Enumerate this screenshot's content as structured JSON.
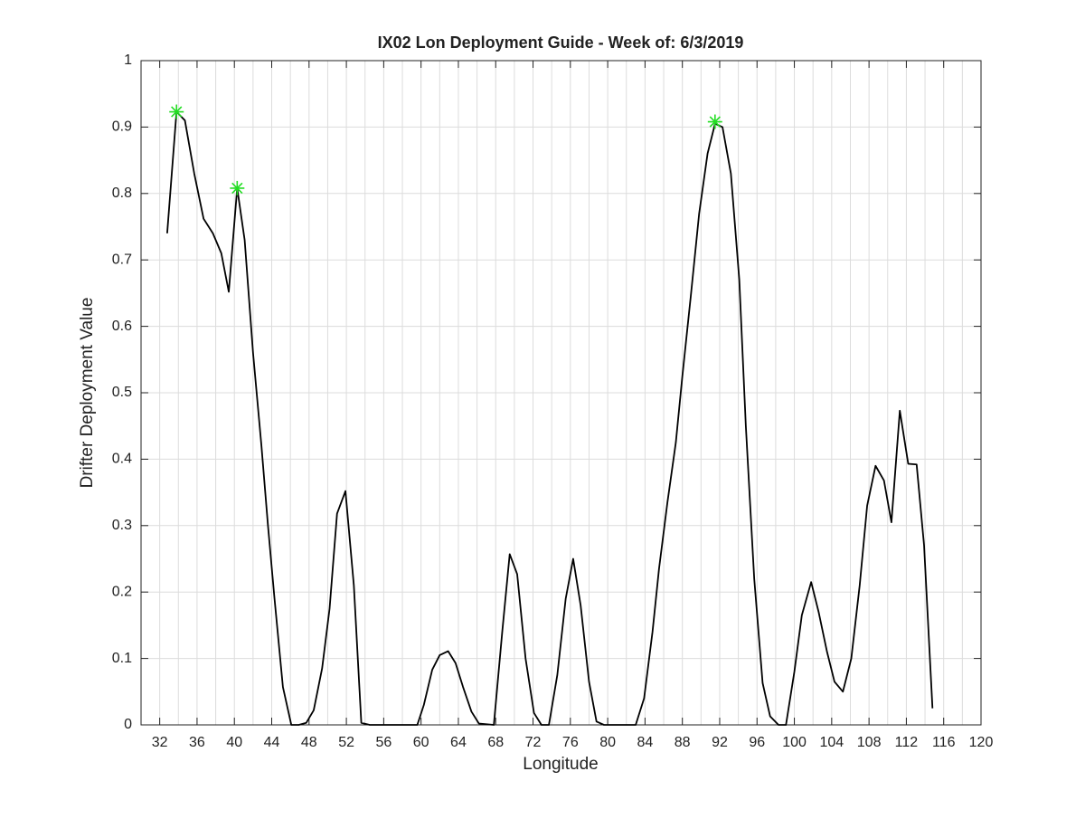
{
  "chart_data": {
    "type": "line",
    "title": "IX02 Lon Deployment Guide - Week of: 6/3/2019",
    "xlabel": "Longitude",
    "ylabel": "Drifter Deployment Value",
    "xlim": [
      30,
      120
    ],
    "ylim": [
      0,
      1
    ],
    "xticks": [
      32,
      36,
      40,
      44,
      48,
      52,
      56,
      60,
      64,
      68,
      72,
      76,
      80,
      84,
      88,
      92,
      96,
      100,
      104,
      108,
      112,
      116,
      120
    ],
    "x_grid_lines": [
      32,
      34,
      36,
      38,
      40,
      42,
      44,
      46,
      48,
      50,
      52,
      54,
      56,
      58,
      60,
      62,
      64,
      66,
      68,
      70,
      72,
      74,
      76,
      78,
      80,
      82,
      84,
      86,
      88,
      90,
      92,
      94,
      96,
      98,
      100,
      102,
      104,
      106,
      108,
      110,
      112,
      114,
      116,
      118,
      120
    ],
    "yticks": [
      0,
      0.1,
      0.2,
      0.3,
      0.4,
      0.5,
      0.6,
      0.7,
      0.8,
      0.9,
      1
    ],
    "grid": true,
    "series": [
      {
        "color": "#000000",
        "marker": "none",
        "x": [
          32.8,
          33.8,
          34.7,
          35.7,
          36.7,
          37.7,
          38.6,
          39.4,
          40.3,
          41.1,
          42.0,
          42.9,
          43.6,
          44.3,
          45.2,
          46.1,
          46.9,
          47.7,
          48.5,
          49.4,
          50.2,
          51.0,
          51.9,
          52.8,
          53.6,
          54.5,
          55.3,
          56.2,
          57.0,
          57.9,
          58.7,
          59.6,
          60.3,
          61.2,
          62.0,
          62.9,
          63.7,
          64.5,
          65.4,
          66.2,
          67.8,
          68.7,
          69.5,
          70.3,
          71.2,
          72.1,
          72.9,
          73.7,
          74.6,
          75.5,
          76.3,
          77.1,
          78.0,
          78.8,
          79.6,
          80.5,
          81.3,
          82.1,
          83.0,
          83.9,
          84.8,
          85.5,
          86.4,
          87.3,
          88.0,
          88.9,
          89.8,
          90.7,
          91.5,
          92.3,
          93.2,
          94.1,
          94.8,
          95.7,
          96.6,
          97.4,
          98.3,
          99.1,
          100.0,
          100.8,
          101.8,
          102.6,
          103.5,
          104.3,
          105.2,
          106.1,
          107.0,
          107.8,
          108.7,
          109.6,
          110.4,
          111.3,
          112.2,
          113.1,
          113.9,
          114.8
        ],
        "values": [
          0.74,
          0.923,
          0.91,
          0.83,
          0.762,
          0.74,
          0.71,
          0.652,
          0.808,
          0.73,
          0.56,
          0.42,
          0.3,
          0.19,
          0.057,
          0,
          0,
          0.003,
          0.022,
          0.085,
          0.175,
          0.318,
          0.352,
          0.21,
          0.003,
          0,
          0,
          0,
          0,
          0,
          0,
          0,
          0.03,
          0.083,
          0.105,
          0.111,
          0.093,
          0.057,
          0.02,
          0.002,
          0,
          0.14,
          0.257,
          0.227,
          0.1,
          0.018,
          0,
          0,
          0.075,
          0.19,
          0.25,
          0.18,
          0.065,
          0.005,
          0,
          0,
          0,
          0,
          0,
          0.04,
          0.14,
          0.235,
          0.335,
          0.425,
          0.525,
          0.645,
          0.77,
          0.86,
          0.905,
          0.9,
          0.83,
          0.67,
          0.45,
          0.22,
          0.063,
          0.013,
          0,
          0,
          0.08,
          0.165,
          0.215,
          0.17,
          0.11,
          0.065,
          0.05,
          0.1,
          0.21,
          0.33,
          0.39,
          0.368,
          0.305,
          0.473,
          0.393,
          0.392,
          0.27,
          0.025
        ]
      },
      {
        "color": "#22dd22",
        "marker": "asterisk",
        "x": [
          33.8,
          40.3,
          91.5
        ],
        "values": [
          0.923,
          0.808,
          0.908
        ]
      }
    ]
  }
}
